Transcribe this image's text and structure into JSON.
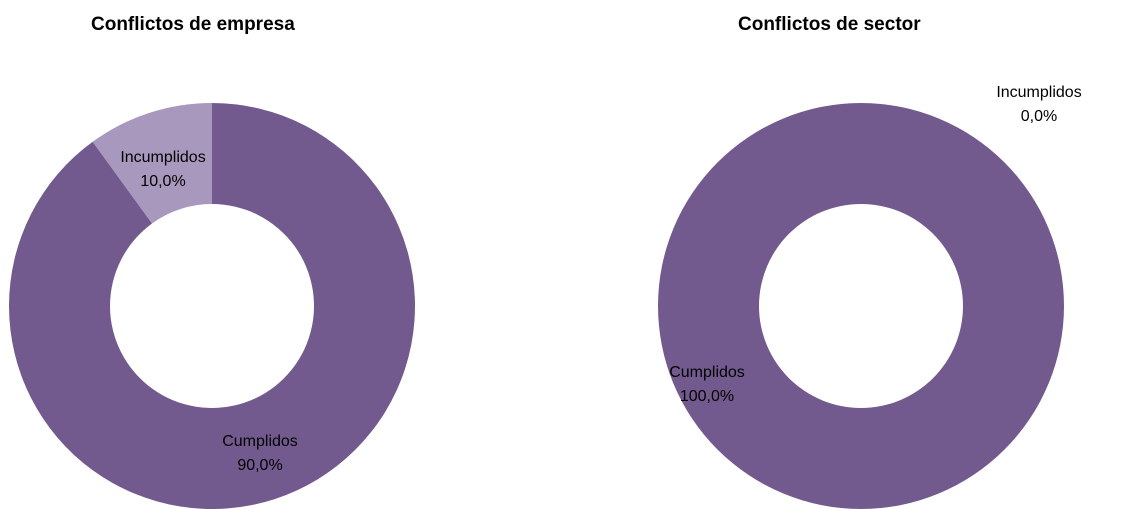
{
  "chart_data": [
    {
      "type": "pie",
      "donut": true,
      "title": "Conflictos de empresa",
      "slices": [
        {
          "label": "Cumplidos",
          "value": 90.0,
          "value_label": "90,0%",
          "color": "#725A8E"
        },
        {
          "label": "Incumplidos",
          "value": 10.0,
          "value_label": "10,0%",
          "color": "#A898BD"
        }
      ],
      "legend": "none",
      "data_labels": "category and percent"
    },
    {
      "type": "pie",
      "donut": true,
      "title": "Conflictos de sector",
      "slices": [
        {
          "label": "Cumplidos",
          "value": 100.0,
          "value_label": "100,0%",
          "color": "#725A8E"
        },
        {
          "label": "Incumplidos",
          "value": 0.0,
          "value_label": "0,0%",
          "color": "#A898BD"
        }
      ],
      "legend": "none",
      "data_labels": "category and percent"
    }
  ]
}
